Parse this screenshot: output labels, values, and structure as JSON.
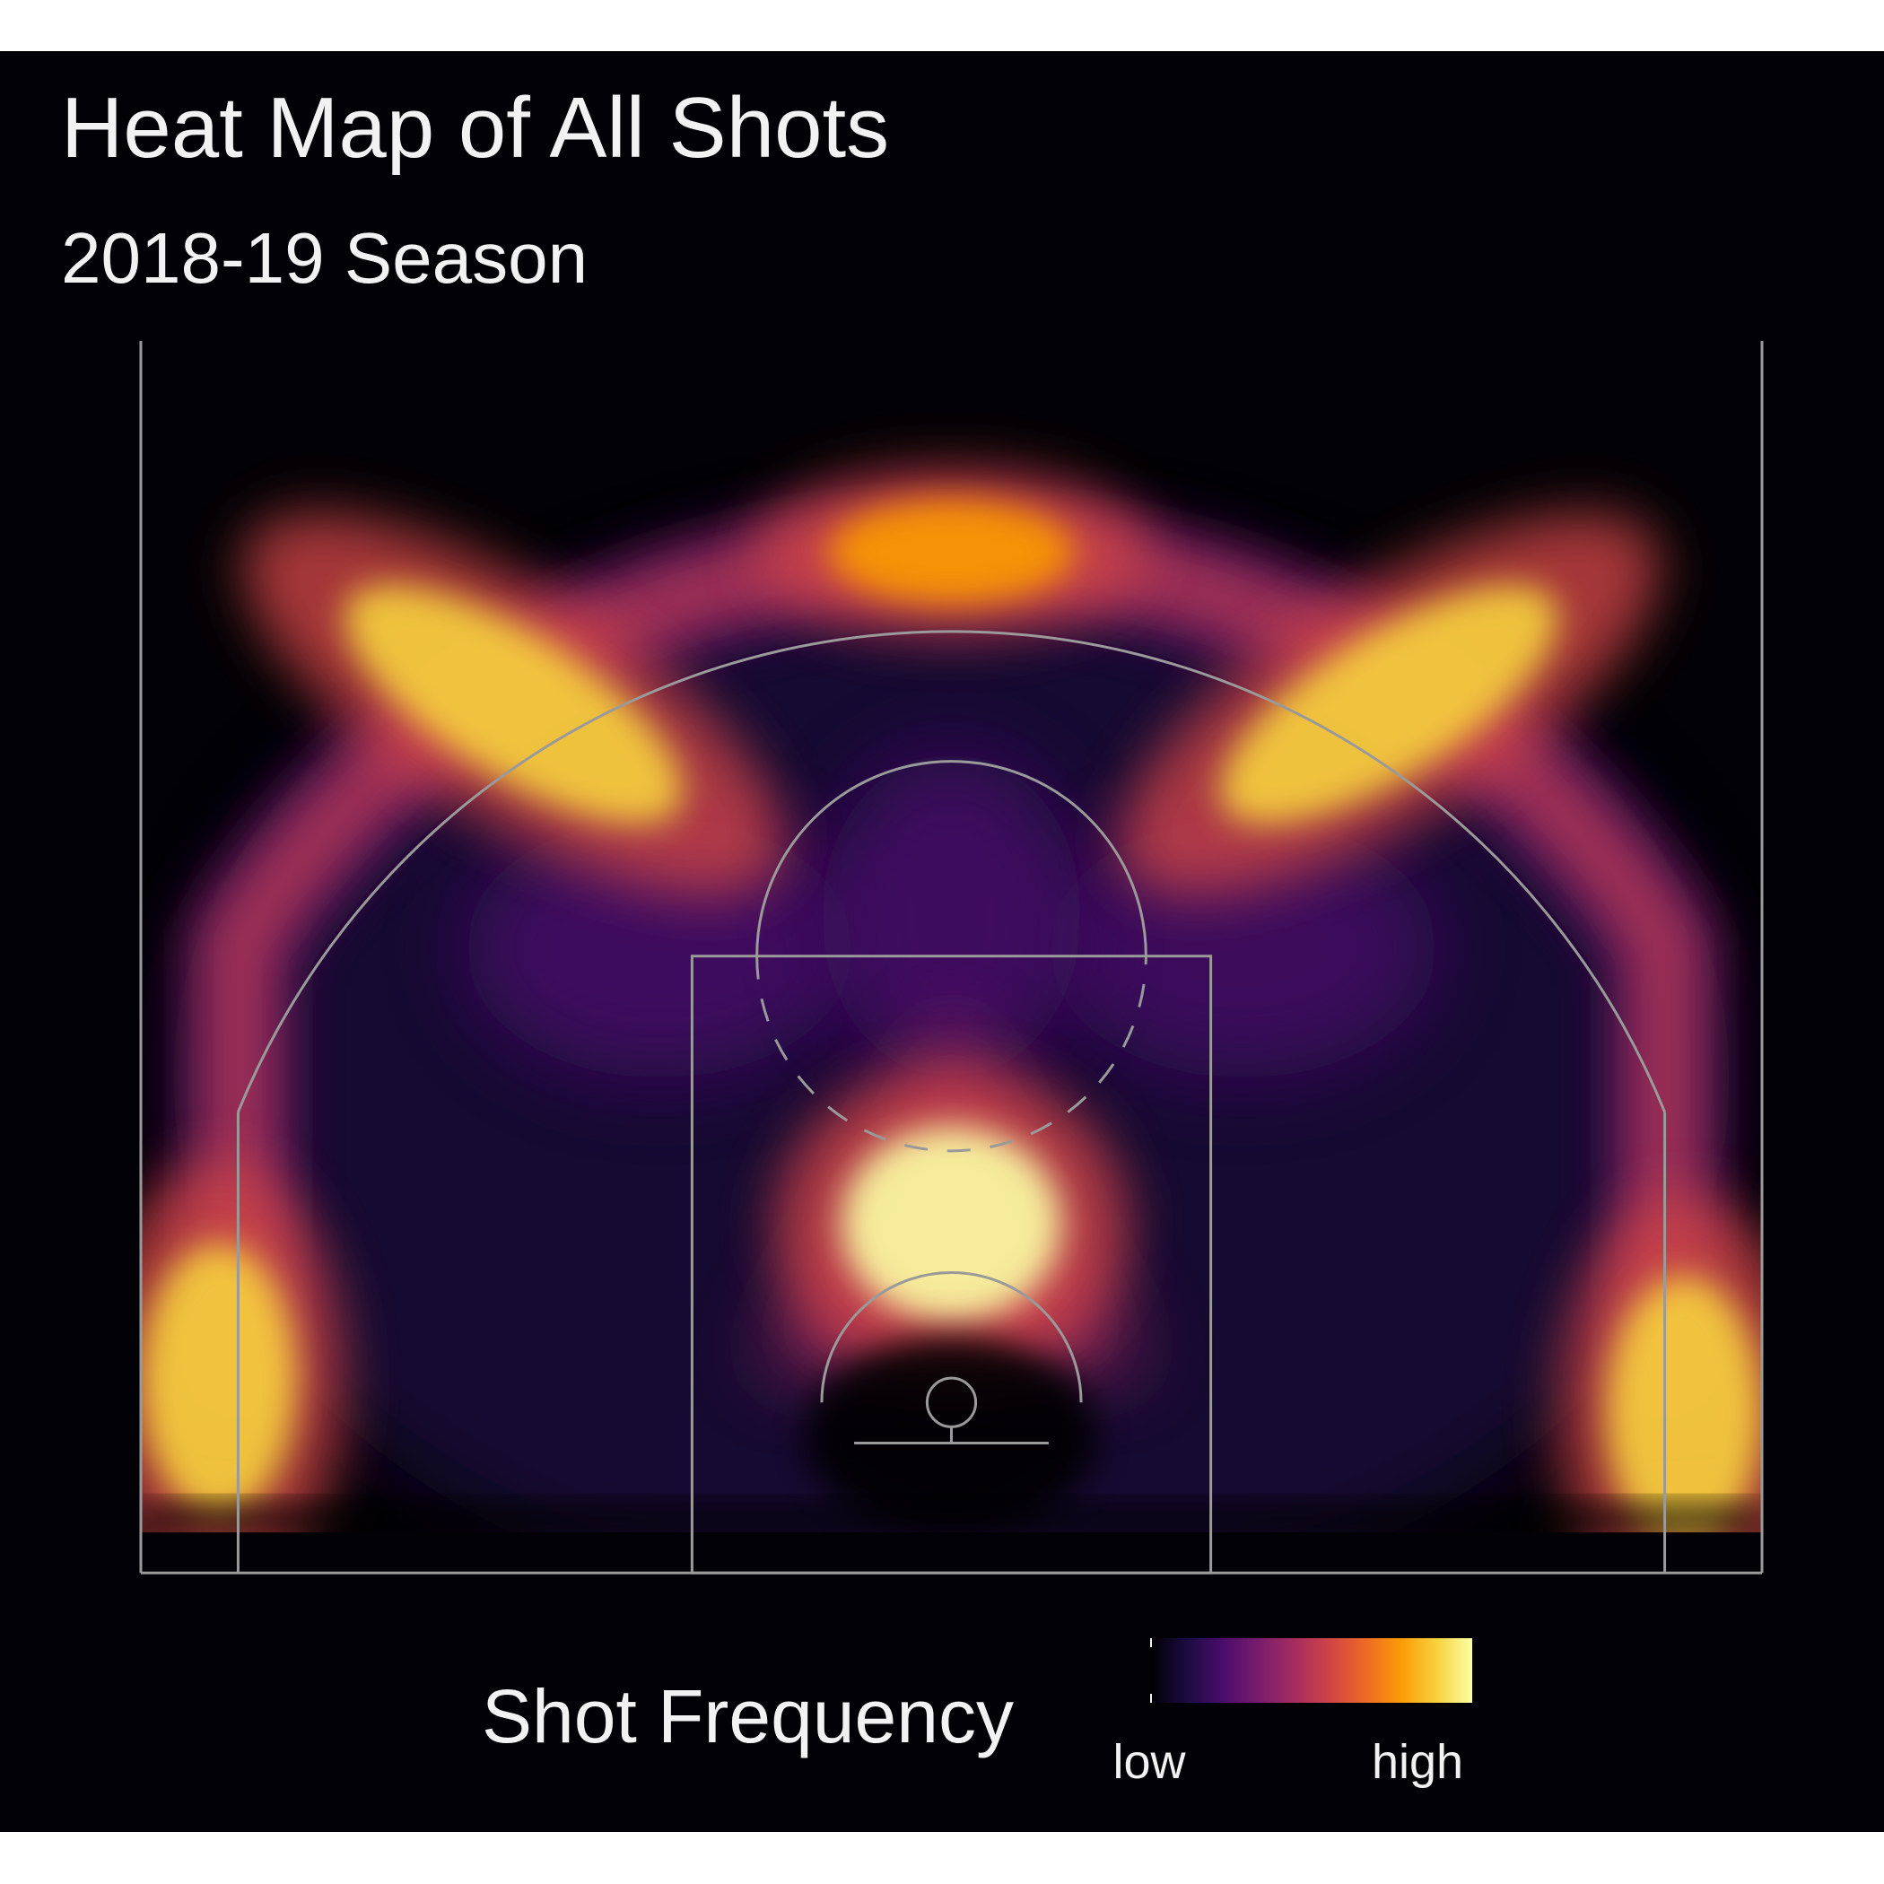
{
  "chart_data": {
    "type": "heatmap",
    "title": "Heat Map of All Shots",
    "subtitle": "2018-19 Season",
    "legend": {
      "title": "Shot Frequency",
      "low_label": "low",
      "high_label": "high",
      "placement": "bottom-center"
    },
    "colormap": [
      "#000004",
      "#1b0c41",
      "#4a0c6b",
      "#781c6d",
      "#a52c60",
      "#cf4446",
      "#ed6925",
      "#fb9b06",
      "#f7d13d",
      "#fcffa4"
    ],
    "colors": {
      "figure_background": "#ffffff",
      "panel_background": "#020105",
      "court_lines": "#9a9a9a",
      "text": "#f2f2f2"
    },
    "court": {
      "units": "feet",
      "xlim": [
        -25,
        25
      ],
      "ylim": [
        -4,
        32.7
      ],
      "hoop": [
        0,
        0
      ],
      "hoop_radius": 0.75,
      "backboard_half_width": 3,
      "backboard_y": -1.25,
      "paint_half_width": 8,
      "baseline_y": -5.25,
      "free_throw_line_y": 13.75,
      "free_throw_circle_radius": 6,
      "restricted_area_radius": 4,
      "corner_three_x": 22,
      "three_point_radius": 23.75,
      "sidelines_x": 25
    },
    "density_hotspots": [
      {
        "zone": "paint near rim",
        "x": 0,
        "y": 5.5,
        "intensity": 1.0
      },
      {
        "zone": "left corner three",
        "x": -22.6,
        "y": 0.7,
        "intensity": 0.85
      },
      {
        "zone": "right corner three",
        "x": 22.6,
        "y": -0.3,
        "intensity": 0.9
      },
      {
        "zone": "top of key three",
        "x": 0,
        "y": 26.2,
        "intensity": 0.8
      },
      {
        "zone": "left wing three",
        "x": -13.5,
        "y": 21.5,
        "intensity": 0.9
      },
      {
        "zone": "right wing three",
        "x": 13.5,
        "y": 21.5,
        "intensity": 0.9
      }
    ]
  }
}
